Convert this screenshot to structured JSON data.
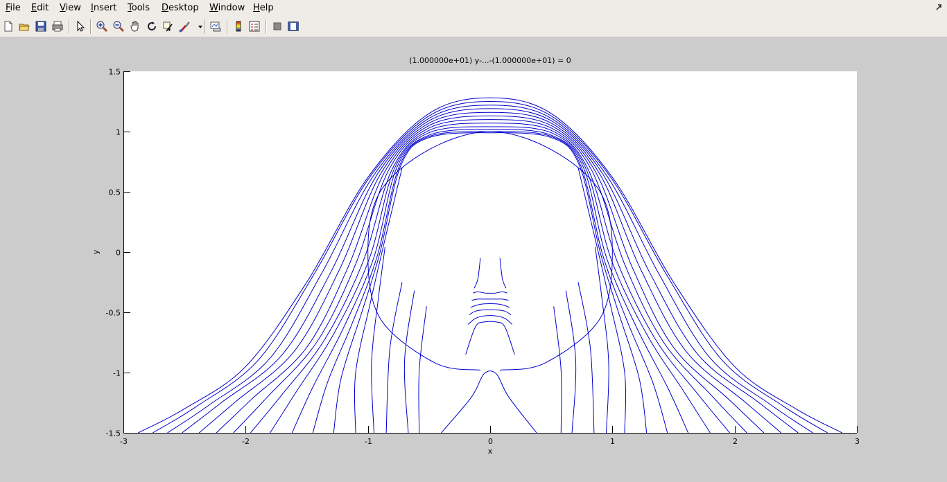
{
  "menubar": {
    "items": [
      {
        "u": "F",
        "rest": "ile"
      },
      {
        "u": "E",
        "rest": "dit"
      },
      {
        "u": "V",
        "rest": "iew"
      },
      {
        "u": "I",
        "rest": "nsert"
      },
      {
        "u": "T",
        "rest": "ools"
      },
      {
        "u": "D",
        "rest": "esktop"
      },
      {
        "u": "W",
        "rest": "indow"
      },
      {
        "u": "H",
        "rest": "elp"
      }
    ],
    "undock_icon": "undock-arrow-icon"
  },
  "toolbar": {
    "tools": [
      "new-figure-icon",
      "open-file-icon",
      "save-icon",
      "print-icon",
      "edit-plot-arrow-icon",
      "zoom-in-icon",
      "zoom-out-icon",
      "pan-hand-icon",
      "rotate-3d-icon",
      "data-cursor-icon",
      "brush-icon",
      "brush-dropdown-icon",
      "link-plot-icon",
      "colorbar-icon",
      "legend-icon",
      "hide-plot-tools-icon",
      "show-plot-tools-icon"
    ]
  },
  "plot": {
    "title": "(1.000000e+01) y-...-(1.000000e+01) = 0",
    "xlabel": "x",
    "ylabel": "y"
  },
  "chart_data": {
    "type": "line",
    "title": "(1.000000e+01) y-...-(1.000000e+01) = 0",
    "xlabel": "x",
    "ylabel": "y",
    "xlim": [
      -3,
      3
    ],
    "ylim": [
      -1.5,
      1.5
    ],
    "x_ticks": [
      "-3",
      "-2",
      "-1",
      "0",
      "1",
      "2",
      "3"
    ],
    "y_ticks": [
      "-1.5",
      "-1",
      "-0.5",
      "0",
      "0.5",
      "1",
      "1.5"
    ],
    "grid": false,
    "line_color": "#0000cc",
    "series": [
      {
        "x": [
          -2.88,
          -2.5,
          -2.0,
          -1.5,
          -1.0,
          -0.5,
          0.0,
          0.5,
          1.0,
          1.5,
          2.0,
          2.5,
          2.88
        ],
        "y": [
          -1.5,
          -1.3,
          -0.95,
          -0.25,
          0.62,
          1.15,
          1.28,
          1.15,
          0.62,
          -0.25,
          -0.95,
          -1.3,
          -1.5
        ]
      },
      {
        "x": [
          -2.76,
          -2.4,
          -1.9,
          -1.45,
          -0.98,
          -0.5,
          0.0,
          0.5,
          0.98,
          1.45,
          1.9,
          2.4,
          2.76
        ],
        "y": [
          -1.5,
          -1.28,
          -0.9,
          -0.2,
          0.63,
          1.13,
          1.25,
          1.13,
          0.63,
          -0.2,
          -0.9,
          -1.28,
          -1.5
        ]
      },
      {
        "x": [
          -2.64,
          -2.3,
          -1.8,
          -1.38,
          -0.95,
          -0.5,
          0.0,
          0.5,
          0.95,
          1.38,
          1.8,
          2.3,
          2.64
        ],
        "y": [
          -1.5,
          -1.27,
          -0.88,
          -0.18,
          0.64,
          1.11,
          1.22,
          1.11,
          0.64,
          -0.18,
          -0.88,
          -1.27,
          -1.5
        ]
      },
      {
        "x": [
          -2.52,
          -2.2,
          -1.7,
          -1.3,
          -0.92,
          -0.5,
          0.0,
          0.5,
          0.92,
          1.3,
          1.7,
          2.2,
          2.52
        ],
        "y": [
          -1.5,
          -1.25,
          -0.85,
          -0.16,
          0.65,
          1.09,
          1.19,
          1.09,
          0.65,
          -0.16,
          -0.85,
          -1.25,
          -1.5
        ]
      },
      {
        "x": [
          -2.38,
          -2.08,
          -1.6,
          -1.23,
          -0.89,
          -0.5,
          0.0,
          0.5,
          0.89,
          1.23,
          1.6,
          2.08,
          2.38
        ],
        "y": [
          -1.5,
          -1.24,
          -0.82,
          -0.14,
          0.66,
          1.07,
          1.16,
          1.07,
          0.66,
          -0.14,
          -0.82,
          -1.24,
          -1.5
        ]
      },
      {
        "x": [
          -2.24,
          -1.95,
          -1.5,
          -1.16,
          -0.86,
          -0.5,
          0.0,
          0.5,
          0.86,
          1.16,
          1.5,
          1.95,
          2.24
        ],
        "y": [
          -1.5,
          -1.22,
          -0.79,
          -0.12,
          0.67,
          1.05,
          1.13,
          1.05,
          0.67,
          -0.12,
          -0.79,
          -1.22,
          -1.5
        ]
      },
      {
        "x": [
          -2.1,
          -1.82,
          -1.42,
          -1.1,
          -0.83,
          -0.5,
          0.0,
          0.5,
          0.83,
          1.1,
          1.42,
          1.82,
          2.1
        ],
        "y": [
          -1.5,
          -1.2,
          -0.75,
          -0.1,
          0.68,
          1.03,
          1.1,
          1.03,
          0.68,
          -0.1,
          -0.75,
          -1.2,
          -1.5
        ]
      },
      {
        "x": [
          -1.96,
          -1.7,
          -1.35,
          -1.04,
          -0.8,
          -0.5,
          0.0,
          0.5,
          0.8,
          1.04,
          1.35,
          1.7,
          1.96
        ],
        "y": [
          -1.5,
          -1.18,
          -0.72,
          -0.08,
          0.69,
          1.01,
          1.07,
          1.01,
          0.69,
          -0.08,
          -0.72,
          -1.18,
          -1.5
        ]
      },
      {
        "x": [
          -1.8,
          -1.58,
          -1.28,
          -0.99,
          -0.78,
          -0.5,
          0.0,
          0.5,
          0.78,
          0.99,
          1.28,
          1.58,
          1.8
        ],
        "y": [
          -1.5,
          -1.15,
          -0.68,
          -0.06,
          0.7,
          0.99,
          1.04,
          0.99,
          0.7,
          -0.06,
          -0.68,
          -1.15,
          -1.5
        ]
      },
      {
        "x": [
          -1.62,
          -1.45,
          -1.2,
          -0.95,
          -0.76,
          -0.5,
          0.0,
          0.5,
          0.76,
          0.95,
          1.2,
          1.45,
          1.62
        ],
        "y": [
          -1.5,
          -1.12,
          -0.63,
          -0.04,
          0.71,
          0.97,
          1.02,
          0.97,
          0.71,
          -0.04,
          -0.63,
          -1.12,
          -1.5
        ]
      },
      {
        "x": [
          -1.45,
          -1.33,
          -1.12,
          -0.92,
          -0.74,
          -0.5,
          0.0,
          0.5,
          0.74,
          0.92,
          1.12,
          1.33,
          1.45
        ],
        "y": [
          -1.5,
          -1.08,
          -0.57,
          -0.02,
          0.72,
          0.96,
          1.0,
          0.96,
          0.72,
          -0.02,
          -0.57,
          -1.08,
          -1.5
        ]
      },
      {
        "x": [
          -1.28,
          -1.22,
          -1.05,
          -0.9,
          -0.73,
          -0.5,
          0.0,
          0.5,
          0.73,
          0.9,
          1.05,
          1.22,
          1.28
        ],
        "y": [
          -1.5,
          -1.05,
          -0.5,
          0.0,
          0.72,
          0.95,
          0.99,
          0.95,
          0.72,
          0.0,
          -0.5,
          -1.05,
          -1.5
        ]
      },
      {
        "x": [
          -1.1,
          -1.1,
          -0.98,
          -0.88,
          -0.72
        ],
        "y": [
          -1.5,
          -1.0,
          -0.42,
          0.02,
          0.7
        ]
      },
      {
        "x": [
          -0.95,
          -0.97,
          -0.91,
          -0.86
        ],
        "y": [
          -1.5,
          -0.92,
          -0.35,
          0.04
        ]
      },
      {
        "x": [
          -0.85,
          -0.82,
          -0.72
        ],
        "y": [
          -1.5,
          -0.8,
          -0.25
        ]
      },
      {
        "x": [
          -0.67,
          -0.7,
          -0.62
        ],
        "y": [
          -1.5,
          -0.9,
          -0.32
        ]
      },
      {
        "x": [
          -0.58,
          -0.58,
          -0.52
        ],
        "y": [
          -1.5,
          -0.98,
          -0.45
        ]
      },
      {
        "x": [
          1.1,
          1.1,
          0.98,
          0.88,
          0.72
        ],
        "y": [
          -1.5,
          -1.0,
          -0.42,
          0.02,
          0.7
        ]
      },
      {
        "x": [
          0.95,
          0.97,
          0.91,
          0.86
        ],
        "y": [
          -1.5,
          -0.92,
          -0.35,
          0.04
        ]
      },
      {
        "x": [
          0.85,
          0.82,
          0.72
        ],
        "y": [
          -1.5,
          -0.8,
          -0.25
        ]
      },
      {
        "x": [
          0.67,
          0.7,
          0.62
        ],
        "y": [
          -1.5,
          -0.9,
          -0.32
        ]
      },
      {
        "x": [
          0.58,
          0.58,
          0.52
        ],
        "y": [
          -1.5,
          -0.98,
          -0.45
        ]
      },
      {
        "x": [
          -0.08,
          -0.45,
          -0.9,
          -1.0,
          -0.9,
          -0.5,
          0.0,
          0.5,
          0.9,
          1.0,
          0.9,
          0.45,
          0.08
        ],
        "y": [
          -0.98,
          -0.92,
          -0.55,
          0.0,
          0.5,
          0.85,
          1.0,
          0.85,
          0.5,
          0.0,
          -0.55,
          -0.92,
          -0.98
        ]
      },
      {
        "x": [
          -0.4,
          -0.15,
          -0.05,
          0.05,
          0.15,
          0.38
        ],
        "y": [
          -1.5,
          -1.2,
          -1.01,
          -1.01,
          -1.2,
          -1.5
        ]
      },
      {
        "x": [
          -0.2,
          -0.12,
          -0.05,
          0.05,
          0.12,
          0.2
        ],
        "y": [
          -0.85,
          -0.62,
          -0.58,
          -0.58,
          -0.62,
          -0.85
        ]
      },
      {
        "x": [
          -0.18,
          -0.12,
          -0.05,
          0.05,
          0.12,
          0.18
        ],
        "y": [
          -0.6,
          -0.55,
          -0.53,
          -0.53,
          -0.55,
          -0.6
        ]
      },
      {
        "x": [
          -0.17,
          -0.12,
          -0.05,
          0.05,
          0.12,
          0.17
        ],
        "y": [
          -0.52,
          -0.49,
          -0.48,
          -0.48,
          -0.49,
          -0.52
        ]
      },
      {
        "x": [
          -0.16,
          -0.11,
          -0.05,
          0.05,
          0.11,
          0.16
        ],
        "y": [
          -0.46,
          -0.44,
          -0.43,
          -0.43,
          -0.44,
          -0.46
        ]
      },
      {
        "x": [
          -0.15,
          -0.1,
          -0.05,
          0.05,
          0.1,
          0.15
        ],
        "y": [
          -0.4,
          -0.39,
          -0.39,
          -0.39,
          -0.39,
          -0.4
        ]
      },
      {
        "x": [
          -0.14,
          -0.1,
          -0.04,
          0.04,
          0.1,
          0.14
        ],
        "y": [
          -0.34,
          -0.33,
          -0.34,
          -0.34,
          -0.33,
          -0.34
        ]
      },
      {
        "x": [
          -0.13,
          -0.1,
          -0.08
        ],
        "y": [
          -0.3,
          -0.22,
          -0.05
        ]
      },
      {
        "x": [
          0.13,
          0.1,
          0.08
        ],
        "y": [
          -0.3,
          -0.22,
          -0.05
        ]
      }
    ]
  }
}
